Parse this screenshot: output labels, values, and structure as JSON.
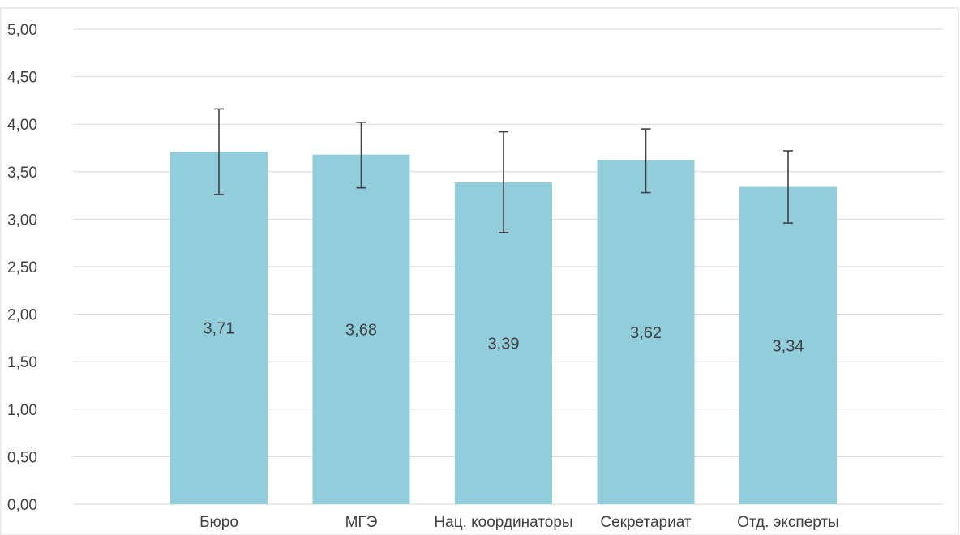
{
  "chart_data": {
    "type": "bar",
    "title": "",
    "xlabel": "",
    "ylabel": "",
    "categories": [
      "Бюро",
      "МГЭ",
      "Нац. координаторы",
      "Секретариат",
      "Отд. эксперты"
    ],
    "values": [
      3.71,
      3.68,
      3.39,
      3.62,
      3.34
    ],
    "value_labels": [
      "3,71",
      "3,68",
      "3,39",
      "3,62",
      "3,34"
    ],
    "error_bars": [
      {
        "low": 3.26,
        "high": 4.16
      },
      {
        "low": 3.33,
        "high": 4.02
      },
      {
        "low": 2.86,
        "high": 3.92
      },
      {
        "low": 3.28,
        "high": 3.95
      },
      {
        "low": 2.96,
        "high": 3.72
      }
    ],
    "ylim": [
      0,
      5
    ],
    "y_ticks": [
      0,
      0.5,
      1,
      1.5,
      2,
      2.5,
      3,
      3.5,
      4,
      4.5,
      5
    ],
    "y_tick_labels": [
      "0,00",
      "0,50",
      "1,00",
      "1,50",
      "2,00",
      "2,50",
      "3,00",
      "3,50",
      "4,00",
      "4,50",
      "5,00"
    ],
    "grid": true,
    "legend": "none",
    "colors": {
      "bar": "#92CDDC",
      "grid": "#D9D9D9",
      "error_bar": "#404040",
      "text": "#404040",
      "border": "#D9D9D9"
    }
  }
}
